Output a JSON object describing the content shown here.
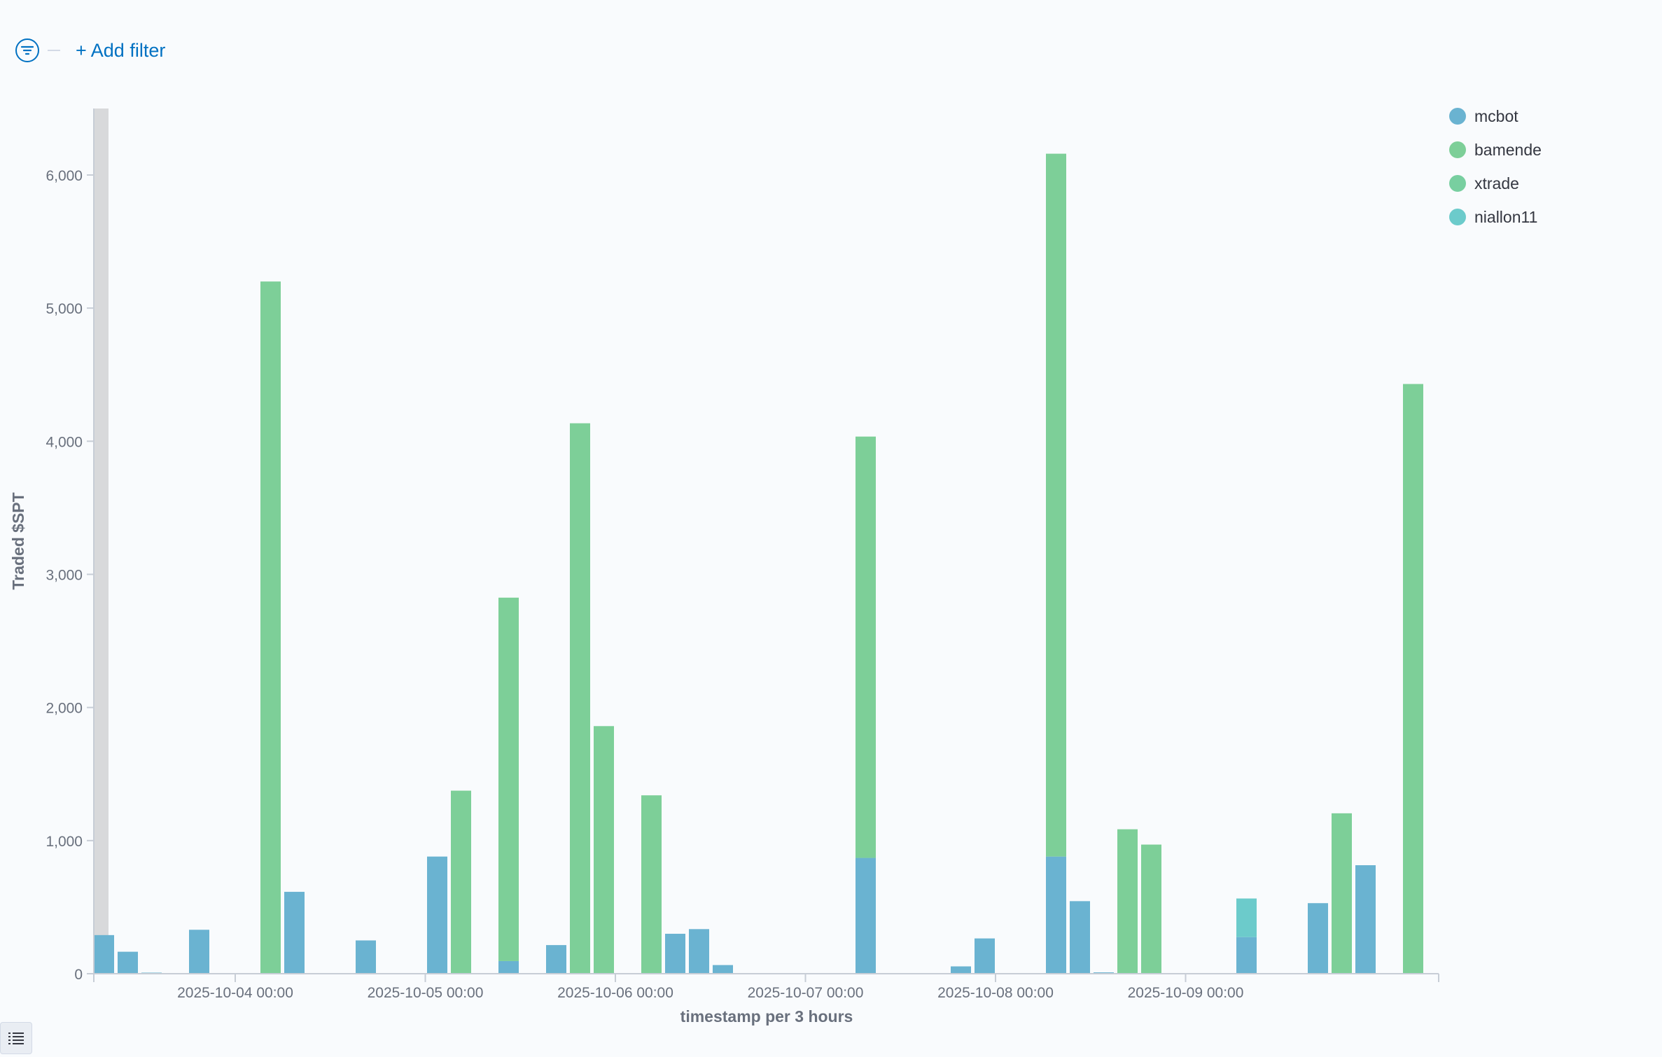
{
  "filter_bar": {
    "add_filter_label": "+ Add filter"
  },
  "colors": {
    "mcbot": "#6092c0",
    "bamende": "#54b399",
    "xtrade": "#54b399",
    "niallon11": "#6dccb1",
    "axis": "#c7cdd6",
    "tick_text": "#69707d",
    "title_text": "#69707d",
    "selection": "#d8d9db"
  },
  "chart_data": {
    "type": "bar",
    "stacked": true,
    "xlabel": "timestamp per 3 hours",
    "ylabel": "Traded $SPT",
    "ylim": [
      0,
      6500
    ],
    "yticks": [
      0,
      1000,
      2000,
      3000,
      4000,
      5000,
      6000
    ],
    "ytick_labels": [
      "0",
      "1,000",
      "2,000",
      "3,000",
      "4,000",
      "5,000",
      "6,000"
    ],
    "xtick_labels": [
      "2025-10-04 00:00",
      "2025-10-05 00:00",
      "2025-10-06 00:00",
      "2025-10-07 00:00",
      "2025-10-08 00:00",
      "2025-10-09 00:00"
    ],
    "grid": false,
    "legend_position": "top-right",
    "series": [
      {
        "name": "mcbot",
        "color": "#6ab3d1"
      },
      {
        "name": "bamende",
        "color": "#7dcf98"
      },
      {
        "name": "xtrade",
        "color": "#78cfa0"
      },
      {
        "name": "niallon11",
        "color": "#6ccbcb"
      }
    ],
    "bars": [
      {
        "slot": 0,
        "mcbot": 290
      },
      {
        "slot": 1,
        "mcbot": 165
      },
      {
        "slot": 2,
        "mcbot": 8
      },
      {
        "slot": 4,
        "mcbot": 330
      },
      {
        "slot": 7,
        "bamende": 5200
      },
      {
        "slot": 8,
        "mcbot": 615
      },
      {
        "slot": 11,
        "mcbot": 250
      },
      {
        "slot": 14,
        "mcbot": 880
      },
      {
        "slot": 15,
        "bamende": 1375
      },
      {
        "slot": 17,
        "mcbot": 95,
        "bamende": 2730
      },
      {
        "slot": 19,
        "mcbot": 215
      },
      {
        "slot": 20,
        "bamende": 4135
      },
      {
        "slot": 21,
        "bamende": 1860
      },
      {
        "slot": 23,
        "bamende": 1340
      },
      {
        "slot": 24,
        "mcbot": 300
      },
      {
        "slot": 25,
        "mcbot": 335
      },
      {
        "slot": 26,
        "mcbot": 65
      },
      {
        "slot": 32,
        "mcbot": 870,
        "bamende": 3165
      },
      {
        "slot": 36,
        "mcbot": 55
      },
      {
        "slot": 37,
        "mcbot": 265
      },
      {
        "slot": 40,
        "mcbot": 880,
        "bamende": 5280
      },
      {
        "slot": 41,
        "mcbot": 545
      },
      {
        "slot": 42,
        "mcbot": 10
      },
      {
        "slot": 43,
        "bamende": 1085
      },
      {
        "slot": 44,
        "bamende": 970
      },
      {
        "slot": 48,
        "mcbot": 275,
        "niallon11": 290
      },
      {
        "slot": 51,
        "mcbot": 530
      },
      {
        "slot": 52,
        "bamende": 1205
      },
      {
        "slot": 53,
        "mcbot": 815
      },
      {
        "slot": 55,
        "bamende": 4430
      }
    ]
  }
}
